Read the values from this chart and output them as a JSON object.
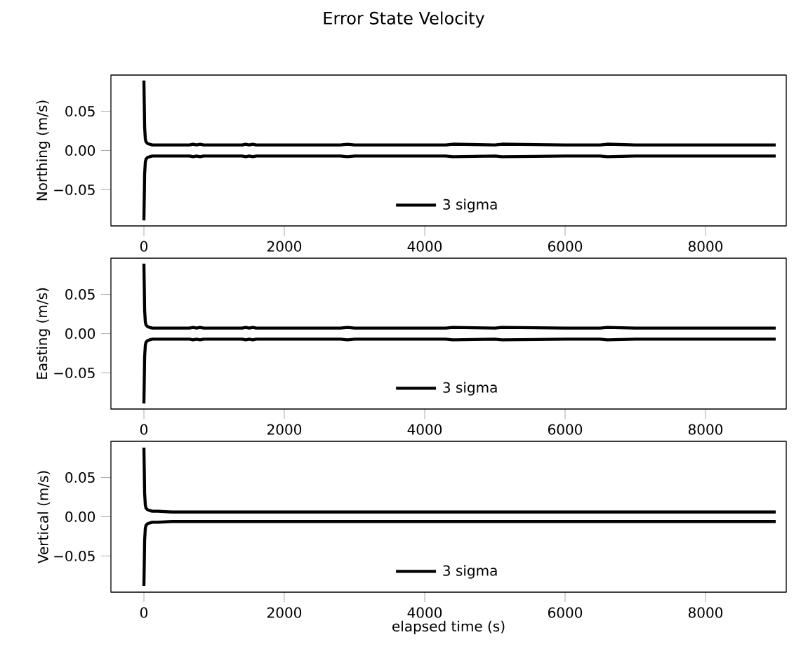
{
  "chart_data": [
    {
      "type": "line",
      "title": "Error State Velocity",
      "ylabel": "Northing (m/s)",
      "x": [
        0,
        5,
        10,
        20,
        30,
        50,
        80,
        120,
        200,
        400,
        650,
        700,
        750,
        800,
        850,
        1000,
        1400,
        1450,
        1500,
        1550,
        1600,
        2000,
        2800,
        2900,
        3000,
        4000,
        4300,
        4400,
        5000,
        5100,
        6000,
        6500,
        6600,
        7000,
        8000,
        9000
      ],
      "series": [
        {
          "name": "3 sigma",
          "color": "#000000",
          "values": [
            0.089,
            0.06,
            0.03,
            0.015,
            0.011,
            0.009,
            0.008,
            0.007,
            0.007,
            0.007,
            0.007,
            0.008,
            0.007,
            0.008,
            0.007,
            0.007,
            0.007,
            0.008,
            0.007,
            0.008,
            0.007,
            0.007,
            0.007,
            0.008,
            0.007,
            0.007,
            0.007,
            0.008,
            0.007,
            0.008,
            0.007,
            0.007,
            0.008,
            0.007,
            0.007,
            0.007
          ]
        },
        {
          "color": "#000000",
          "values": [
            -0.089,
            -0.06,
            -0.03,
            -0.015,
            -0.011,
            -0.009,
            -0.008,
            -0.007,
            -0.007,
            -0.007,
            -0.007,
            -0.008,
            -0.007,
            -0.008,
            -0.007,
            -0.007,
            -0.007,
            -0.008,
            -0.007,
            -0.008,
            -0.007,
            -0.007,
            -0.007,
            -0.008,
            -0.007,
            -0.007,
            -0.007,
            -0.008,
            -0.007,
            -0.008,
            -0.007,
            -0.007,
            -0.008,
            -0.007,
            -0.007,
            -0.007
          ]
        }
      ],
      "xlim": [
        -470,
        9150
      ],
      "ylim": [
        -0.096,
        0.096
      ],
      "xticks": [
        0,
        2000,
        4000,
        6000,
        8000
      ],
      "yticks": [
        {
          "value": -0.05,
          "label": "−0.05"
        },
        {
          "value": 0,
          "label": "0.00"
        },
        {
          "value": 0.05,
          "label": "0.05"
        }
      ],
      "legend": "bottom",
      "grid": false
    },
    {
      "type": "line",
      "ylabel": "Easting (m/s)",
      "x": [
        0,
        5,
        10,
        20,
        30,
        50,
        80,
        120,
        200,
        400,
        650,
        700,
        750,
        800,
        850,
        1000,
        1400,
        1450,
        1500,
        1550,
        1600,
        2000,
        2800,
        2900,
        3000,
        4000,
        4300,
        4400,
        5000,
        5100,
        6000,
        6500,
        6600,
        7000,
        8000,
        9000
      ],
      "series": [
        {
          "name": "3 sigma",
          "color": "#000000",
          "values": [
            0.089,
            0.06,
            0.03,
            0.015,
            0.011,
            0.009,
            0.008,
            0.007,
            0.007,
            0.007,
            0.007,
            0.008,
            0.007,
            0.008,
            0.007,
            0.007,
            0.007,
            0.008,
            0.007,
            0.008,
            0.007,
            0.007,
            0.007,
            0.008,
            0.007,
            0.007,
            0.007,
            0.008,
            0.007,
            0.008,
            0.007,
            0.007,
            0.008,
            0.007,
            0.007,
            0.007
          ]
        },
        {
          "color": "#000000",
          "values": [
            -0.089,
            -0.06,
            -0.03,
            -0.015,
            -0.011,
            -0.009,
            -0.008,
            -0.007,
            -0.007,
            -0.007,
            -0.007,
            -0.008,
            -0.007,
            -0.008,
            -0.007,
            -0.007,
            -0.007,
            -0.008,
            -0.007,
            -0.008,
            -0.007,
            -0.007,
            -0.007,
            -0.008,
            -0.007,
            -0.007,
            -0.007,
            -0.008,
            -0.007,
            -0.008,
            -0.007,
            -0.007,
            -0.008,
            -0.007,
            -0.007,
            -0.007
          ]
        }
      ],
      "xlim": [
        -470,
        9150
      ],
      "ylim": [
        -0.096,
        0.096
      ],
      "xticks": [
        0,
        2000,
        4000,
        6000,
        8000
      ],
      "yticks": [
        {
          "value": -0.05,
          "label": "−0.05"
        },
        {
          "value": 0,
          "label": "0.00"
        },
        {
          "value": 0.05,
          "label": "0.05"
        }
      ],
      "legend": "bottom",
      "grid": false
    },
    {
      "type": "line",
      "ylabel": "Vertical (m/s)",
      "xlabel": "elapsed time (s)",
      "x": [
        0,
        5,
        10,
        20,
        30,
        50,
        80,
        120,
        200,
        400,
        1000,
        2000,
        3000,
        4000,
        5000,
        6000,
        7000,
        8000,
        9000
      ],
      "series": [
        {
          "name": "3 sigma",
          "color": "#000000",
          "values": [
            0.088,
            0.06,
            0.03,
            0.015,
            0.011,
            0.009,
            0.008,
            0.007,
            0.007,
            0.006,
            0.006,
            0.006,
            0.006,
            0.006,
            0.006,
            0.006,
            0.006,
            0.006,
            0.006
          ]
        },
        {
          "color": "#000000",
          "values": [
            -0.088,
            -0.06,
            -0.03,
            -0.015,
            -0.011,
            -0.009,
            -0.008,
            -0.007,
            -0.007,
            -0.006,
            -0.006,
            -0.006,
            -0.006,
            -0.006,
            -0.006,
            -0.006,
            -0.006,
            -0.006,
            -0.006
          ]
        }
      ],
      "xlim": [
        -470,
        9150
      ],
      "ylim": [
        -0.096,
        0.096
      ],
      "xticks": [
        0,
        2000,
        4000,
        6000,
        8000
      ],
      "yticks": [
        {
          "value": -0.05,
          "label": "−0.05"
        },
        {
          "value": 0,
          "label": "0.00"
        },
        {
          "value": 0.05,
          "label": "0.05"
        }
      ],
      "legend": "bottom",
      "grid": false
    }
  ]
}
